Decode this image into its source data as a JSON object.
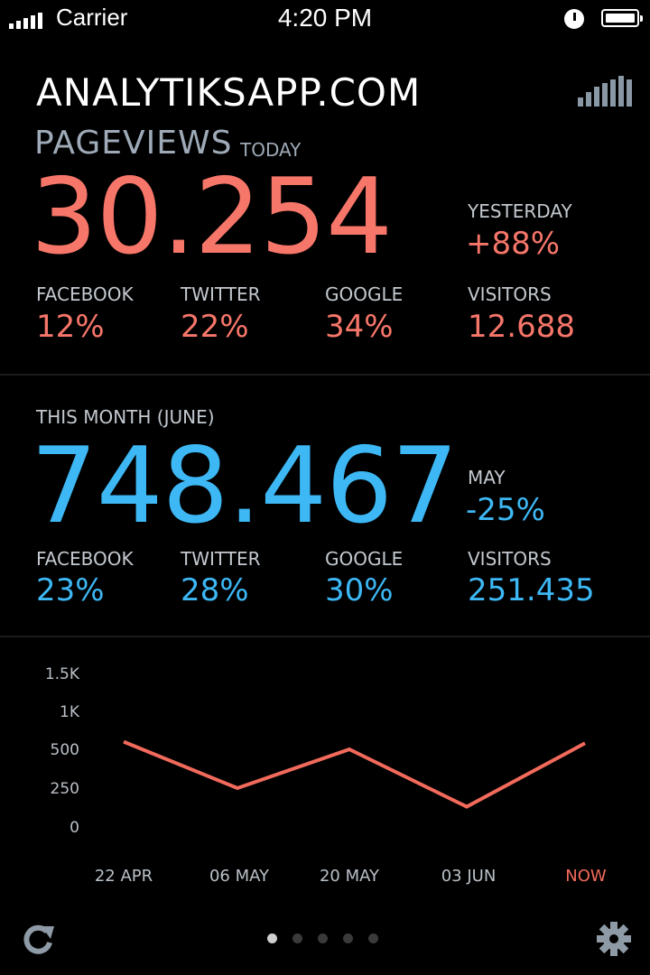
{
  "status_bar": {
    "carrier": "Carrier",
    "time": "4:20 PM"
  },
  "header": {
    "title": "ANALYTIKSAPP.COM"
  },
  "today": {
    "label": "PAGEVIEWS",
    "sublabel": "TODAY",
    "value": "30.254",
    "compare_label": "YESTERDAY",
    "compare_value": "+88%",
    "stats": [
      {
        "label": "FACEBOOK",
        "value": "12%"
      },
      {
        "label": "TWITTER",
        "value": "22%"
      },
      {
        "label": "GOOGLE",
        "value": "34%"
      },
      {
        "label": "VISITORS",
        "value": "12.688"
      }
    ]
  },
  "month": {
    "label": "THIS MONTH (JUNE)",
    "value": "748.467",
    "compare_label": "MAY",
    "compare_value": "-25%",
    "stats": [
      {
        "label": "FACEBOOK",
        "value": "23%"
      },
      {
        "label": "TWITTER",
        "value": "28%"
      },
      {
        "label": "GOOGLE",
        "value": "30%"
      },
      {
        "label": "VISITORS",
        "value": "251.435"
      }
    ]
  },
  "chart_data": {
    "type": "line",
    "categories": [
      "22 APR",
      "06 MAY",
      "20 MAY",
      "03 JUN",
      "NOW"
    ],
    "y_ticks": [
      "1.5K",
      "1K",
      "500",
      "250",
      "0"
    ],
    "series": [
      {
        "values": [
          600,
          250,
          500,
          130,
          580
        ]
      }
    ],
    "line_color": "#f26a5c",
    "highlight_category_color": "#f26a5c"
  },
  "pager": {
    "count": 5,
    "active": 0
  },
  "colors": {
    "accent_red": "#f7766a",
    "accent_blue": "#3db8f5"
  },
  "icons": {
    "left": "refresh-icon",
    "right": "gear-icon",
    "header": "bar-chart-icon"
  }
}
